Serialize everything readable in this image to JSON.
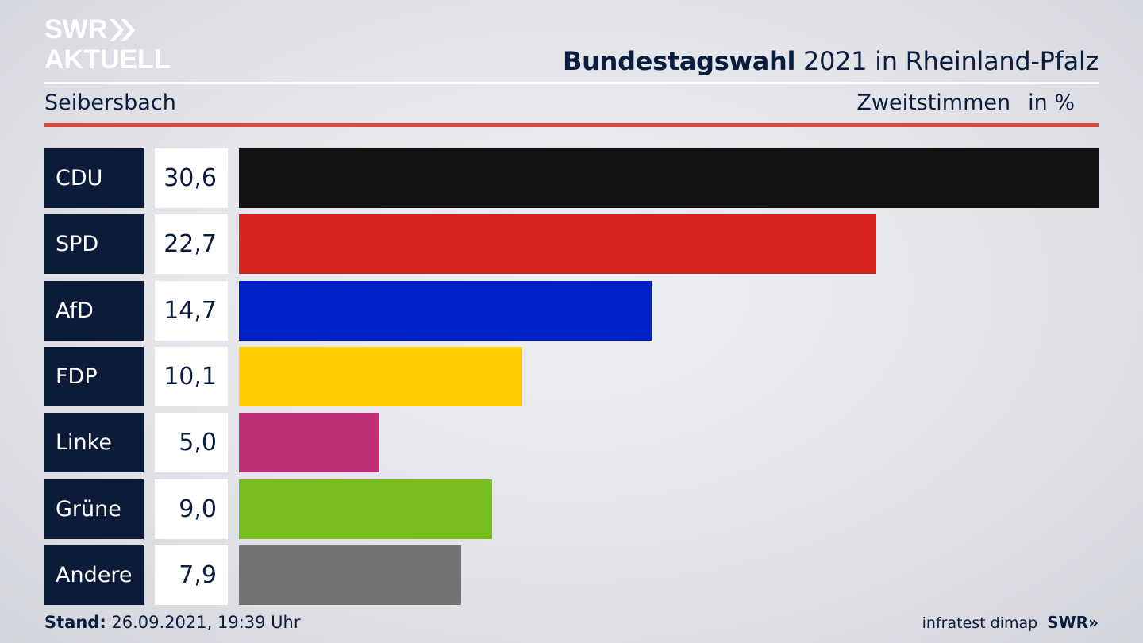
{
  "header": {
    "logo_line1": "SWR",
    "logo_line2": "AKTUELL",
    "title_bold": "Bundestagswahl",
    "title_rest": " 2021 in Rheinland-Pfalz",
    "location": "Seibersbach",
    "metric": "Zweitstimmen",
    "unit": "in %"
  },
  "chart_data": {
    "type": "bar",
    "orientation": "horizontal",
    "title": "Bundestagswahl 2021 in Rheinland-Pfalz",
    "categories": [
      "CDU",
      "SPD",
      "AfD",
      "FDP",
      "Linke",
      "Grüne",
      "Andere"
    ],
    "values": [
      30.6,
      22.7,
      14.7,
      10.1,
      5.0,
      9.0,
      7.9
    ],
    "value_labels": [
      "30,6",
      "22,7",
      "14,7",
      "10,1",
      "5,0",
      "9,0",
      "7,9"
    ],
    "colors": [
      "#121212",
      "#d92121",
      "#0021c9",
      "#ffcc00",
      "#be3075",
      "#78be1e",
      "#737375"
    ],
    "xlim": [
      0,
      30.6
    ],
    "grid": false,
    "legend": "none"
  },
  "footer": {
    "stand_label": "Stand:",
    "stand_value": " 26.09.2021, 19:39 Uhr",
    "source": "infratest dimap",
    "brand": "SWR»"
  }
}
